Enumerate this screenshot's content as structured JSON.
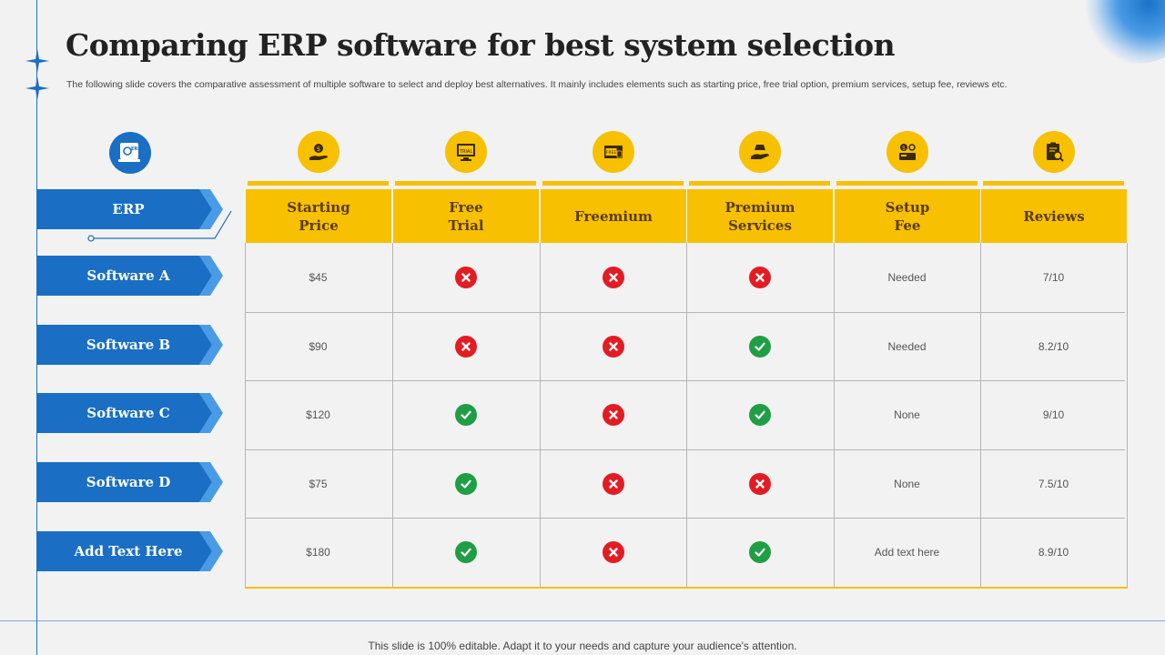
{
  "title": "Comparing ERP software for best system selection",
  "subtitle": "The following slide covers the comparative assessment of multiple software to select and deploy best alternatives. It mainly includes elements such as starting price, free trial option, premium services, setup fee, reviews etc.",
  "erp_label": "ERP",
  "erp_icon_text": "ERP",
  "columns": [
    {
      "label": "Starting\nPrice",
      "icon": "price-hand-icon"
    },
    {
      "label": "Free\nTrial",
      "icon": "trial-monitor-icon"
    },
    {
      "label": "Freemium",
      "icon": "free-tag-icon"
    },
    {
      "label": "Premium\nServices",
      "icon": "premium-hand-icon"
    },
    {
      "label": "Setup\nFee",
      "icon": "setup-fee-icon"
    },
    {
      "label": "Reviews",
      "icon": "review-clipboard-icon"
    }
  ],
  "rows": [
    {
      "name": "Software A",
      "price": "$45",
      "free_trial": "no",
      "freemium": "no",
      "premium": "no",
      "setup_fee": "Needed",
      "reviews": "7/10"
    },
    {
      "name": "Software B",
      "price": "$90",
      "free_trial": "no",
      "freemium": "no",
      "premium": "yes",
      "setup_fee": "Needed",
      "reviews": "8.2/10"
    },
    {
      "name": "Software C",
      "price": "$120",
      "free_trial": "yes",
      "freemium": "no",
      "premium": "yes",
      "setup_fee": "None",
      "reviews": "9/10"
    },
    {
      "name": "Software D",
      "price": "$75",
      "free_trial": "yes",
      "freemium": "no",
      "premium": "no",
      "setup_fee": "None",
      "reviews": "7.5/10"
    },
    {
      "name": "Add Text Here",
      "price": "$180",
      "free_trial": "yes",
      "freemium": "no",
      "premium": "yes",
      "setup_fee": "Add text here",
      "reviews": "8.9/10"
    }
  ],
  "colors": {
    "accent_blue": "#1a6fc4",
    "accent_yellow": "#f7c000",
    "check_green": "#1f9e45",
    "cross_red": "#e31c23"
  },
  "footer": "This slide is 100% editable. Adapt it to your needs and capture your audience's attention."
}
